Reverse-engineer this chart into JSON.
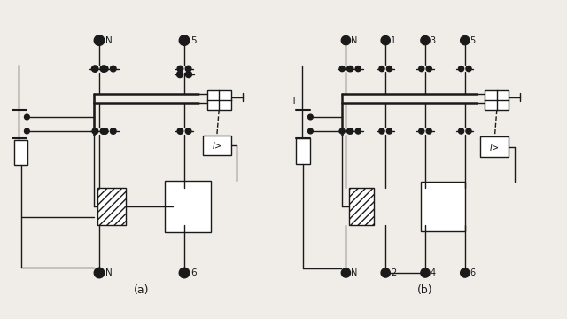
{
  "bg_color": "#f0ede8",
  "lc": "#1a1a1a",
  "lw": 1.0,
  "lw_bus": 1.8,
  "title_a": "(a)",
  "title_b": "(b)",
  "title_fs": 9,
  "label_fs": 7.5,
  "relay_label": "I>",
  "relay_label_fs": 7
}
